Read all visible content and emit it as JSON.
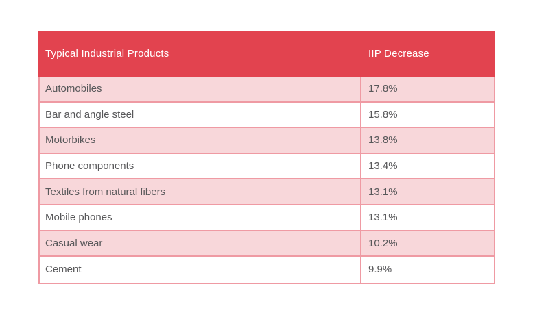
{
  "table": {
    "header": {
      "col1": "Typical Industrial Products",
      "col2": "IIP Decrease"
    },
    "rows": [
      {
        "product": "Automobiles",
        "decrease": "17.8%"
      },
      {
        "product": "Bar and angle steel",
        "decrease": "15.8%"
      },
      {
        "product": "Motorbikes",
        "decrease": "13.8%"
      },
      {
        "product": "Phone components",
        "decrease": "13.4%"
      },
      {
        "product": "Textiles from natural fibers",
        "decrease": "13.1%"
      },
      {
        "product": "Mobile phones",
        "decrease": "13.1%"
      },
      {
        "product": "Casual wear",
        "decrease": "10.2%"
      },
      {
        "product": "Cement",
        "decrease": "9.9%"
      }
    ]
  },
  "colors": {
    "header_background": "#e2434f",
    "header_text": "#ffffff",
    "row_pink": "#f8d7da",
    "row_white": "#ffffff",
    "border": "#ef9aa3",
    "row_text": "#58585a",
    "page_background": "#ffffff"
  },
  "chart_data": {
    "type": "table",
    "columns": [
      "Typical Industrial Products",
      "IIP Decrease"
    ],
    "categories": [
      "Automobiles",
      "Bar and angle steel",
      "Motorbikes",
      "Phone components",
      "Textiles from natural fibers",
      "Mobile phones",
      "Casual wear",
      "Cement"
    ],
    "values": [
      17.8,
      15.8,
      13.8,
      13.4,
      13.1,
      13.1,
      10.2,
      9.9
    ],
    "value_unit": "%",
    "title": "",
    "layout_hints": {
      "header_style": "solid red band",
      "row_striping": "pink/white alternating, first data row pink",
      "legend": "none",
      "grid": "pink cell borders"
    }
  }
}
